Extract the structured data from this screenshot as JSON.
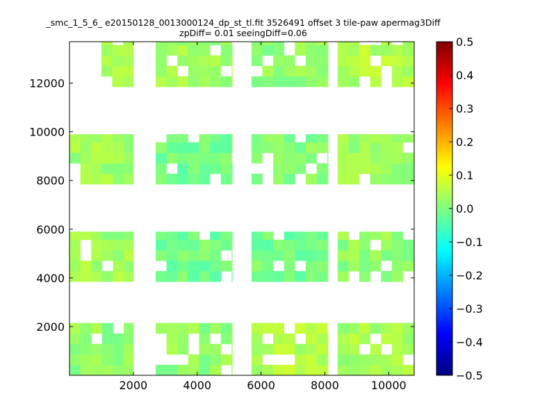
{
  "title_line1": "_smc_1_5_6_ e20150128_0013000124_dp_st_tl.fit 3526491 offset 3 tile-paw apermag3Diff",
  "title_line2": "zpDiff= 0.01 seeingDiff=0.06",
  "chart_data": {
    "type": "heatmap",
    "title": "_smc_1_5_6_ e20150128_0013000124_dp_st_tl.fit 3526491 offset 3 tile-paw apermag3Diff",
    "subtitle": "zpDiff= 0.01 seeingDiff=0.06",
    "xlabel": "",
    "ylabel": "",
    "xlim": [
      0,
      10800
    ],
    "ylim": [
      0,
      13700
    ],
    "xticks": [
      2000,
      4000,
      6000,
      8000,
      10000
    ],
    "yticks": [
      2000,
      4000,
      6000,
      8000,
      10000,
      12000
    ],
    "cell_size": [
      340,
      430
    ],
    "colorbar": {
      "colormap": "jet",
      "range": [
        -0.5,
        0.5
      ],
      "ticks": [
        "0.5",
        "0.4",
        "0.3",
        "0.2",
        "0.1",
        "0.0",
        "−0.1",
        "−0.2",
        "−0.3",
        "−0.4",
        "−0.5"
      ]
    },
    "blocks": [
      {
        "x": [
          1000,
          2000
        ],
        "y": [
          11850,
          13700
        ],
        "value": 0.04
      },
      {
        "x": [
          2700,
          5100
        ],
        "y": [
          11850,
          13700
        ],
        "value": 0.03
      },
      {
        "x": [
          5700,
          8100
        ],
        "y": [
          11850,
          13700
        ],
        "value": 0.02
      },
      {
        "x": [
          8400,
          10800
        ],
        "y": [
          11850,
          13700
        ],
        "value": 0.05
      },
      {
        "x": [
          0,
          2000
        ],
        "y": [
          7850,
          9900
        ],
        "value": 0.03
      },
      {
        "x": [
          2700,
          5100
        ],
        "y": [
          7850,
          9900
        ],
        "value": -0.01
      },
      {
        "x": [
          5700,
          8100
        ],
        "y": [
          7850,
          9900
        ],
        "value": 0.01
      },
      {
        "x": [
          8400,
          10800
        ],
        "y": [
          7850,
          9900
        ],
        "value": 0.03
      },
      {
        "x": [
          0,
          2000
        ],
        "y": [
          3850,
          5900
        ],
        "value": 0.03
      },
      {
        "x": [
          2700,
          5100
        ],
        "y": [
          3850,
          5900
        ],
        "value": -0.01
      },
      {
        "x": [
          5700,
          8100
        ],
        "y": [
          3850,
          5900
        ],
        "value": -0.01
      },
      {
        "x": [
          8400,
          10800
        ],
        "y": [
          3850,
          5900
        ],
        "value": 0.02
      },
      {
        "x": [
          0,
          2000
        ],
        "y": [
          0,
          2150
        ],
        "value": 0.02
      },
      {
        "x": [
          2700,
          5100
        ],
        "y": [
          0,
          2150
        ],
        "value": 0.02
      },
      {
        "x": [
          5700,
          8100
        ],
        "y": [
          0,
          2150
        ],
        "value": 0.05
      },
      {
        "x": [
          8400,
          10800
        ],
        "y": [
          0,
          2150
        ],
        "value": 0.04
      }
    ]
  }
}
